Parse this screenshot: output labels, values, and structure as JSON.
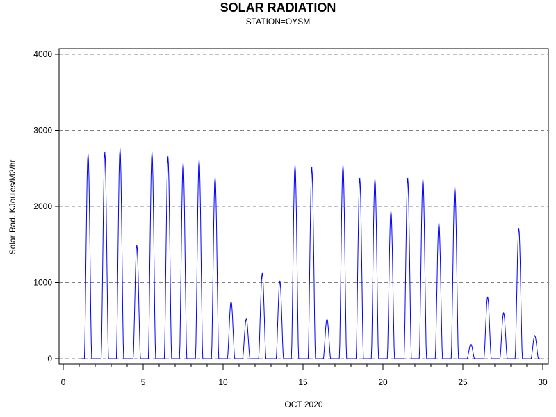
{
  "chart_data": {
    "type": "line",
    "title": "SOLAR RADIATION",
    "subtitle": "STATION=OYSM",
    "xlabel": "OCT 2020",
    "ylabel": "Solar Rad. KJoules/M2/hr",
    "xlim": [
      0,
      30
    ],
    "ylim": [
      0,
      4000
    ],
    "x_ticks": [
      0,
      5,
      10,
      15,
      20,
      25,
      30
    ],
    "y_ticks": [
      0,
      1000,
      2000,
      3000,
      4000
    ],
    "grid": "horizontal dashed",
    "line_color": "#0000ff",
    "series": [
      {
        "daily_peaks": [
          {
            "day": 1.55,
            "peak": 2690
          },
          {
            "day": 2.6,
            "peak": 2710
          },
          {
            "day": 3.55,
            "peak": 2760
          },
          {
            "day": 4.6,
            "peak": 1490
          },
          {
            "day": 5.55,
            "peak": 2710
          },
          {
            "day": 6.55,
            "peak": 2650
          },
          {
            "day": 7.5,
            "peak": 2570
          },
          {
            "day": 8.5,
            "peak": 2610
          },
          {
            "day": 9.5,
            "peak": 2380
          },
          {
            "day": 10.5,
            "peak": 750
          },
          {
            "day": 11.45,
            "peak": 520
          },
          {
            "day": 12.45,
            "peak": 1120
          },
          {
            "day": 13.55,
            "peak": 1020
          },
          {
            "day": 14.5,
            "peak": 2540
          },
          {
            "day": 15.55,
            "peak": 2510
          },
          {
            "day": 16.5,
            "peak": 520
          },
          {
            "day": 17.5,
            "peak": 2540
          },
          {
            "day": 18.55,
            "peak": 2370
          },
          {
            "day": 19.5,
            "peak": 2360
          },
          {
            "day": 20.5,
            "peak": 1940
          },
          {
            "day": 21.55,
            "peak": 2370
          },
          {
            "day": 22.5,
            "peak": 2360
          },
          {
            "day": 23.5,
            "peak": 1780
          },
          {
            "day": 24.5,
            "peak": 2250
          },
          {
            "day": 25.5,
            "peak": 190
          },
          {
            "day": 26.55,
            "peak": 810
          },
          {
            "day": 27.55,
            "peak": 600
          },
          {
            "day": 28.5,
            "peak": 1710
          },
          {
            "day": 29.5,
            "peak": 300
          }
        ]
      }
    ]
  }
}
